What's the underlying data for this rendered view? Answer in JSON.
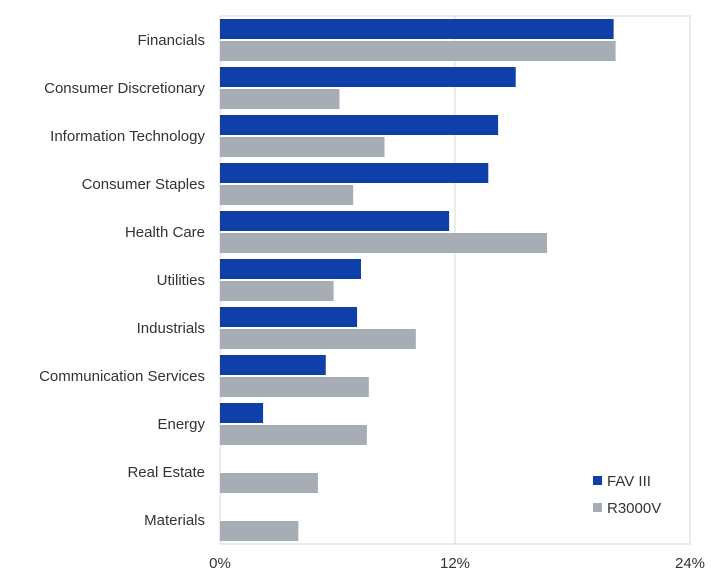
{
  "chart_data": {
    "type": "bar",
    "orientation": "horizontal",
    "categories": [
      "Financials",
      "Consumer Discretionary",
      "Information Technology",
      "Consumer Staples",
      "Health Care",
      "Utilities",
      "Industrials",
      "Communication Services",
      "Energy",
      "Real Estate",
      "Materials"
    ],
    "series": [
      {
        "name": "FAV III",
        "color": "#0f3fa8",
        "values": [
          20.1,
          15.1,
          14.2,
          13.7,
          11.7,
          7.2,
          7.0,
          5.4,
          2.2,
          0,
          0
        ]
      },
      {
        "name": "R3000V",
        "color": "#a6adb4",
        "values": [
          20.2,
          6.1,
          8.4,
          6.8,
          16.7,
          5.8,
          10.0,
          7.6,
          7.5,
          5.0,
          4.0
        ]
      }
    ],
    "xaxis": {
      "min": 0,
      "max": 24,
      "ticks": [
        0,
        12,
        24
      ],
      "tick_labels": [
        "0%",
        "12%",
        "24%"
      ]
    },
    "grid": true,
    "legend": {
      "position": "bottom-right",
      "entries": [
        "FAV III",
        "R3000V"
      ]
    }
  }
}
